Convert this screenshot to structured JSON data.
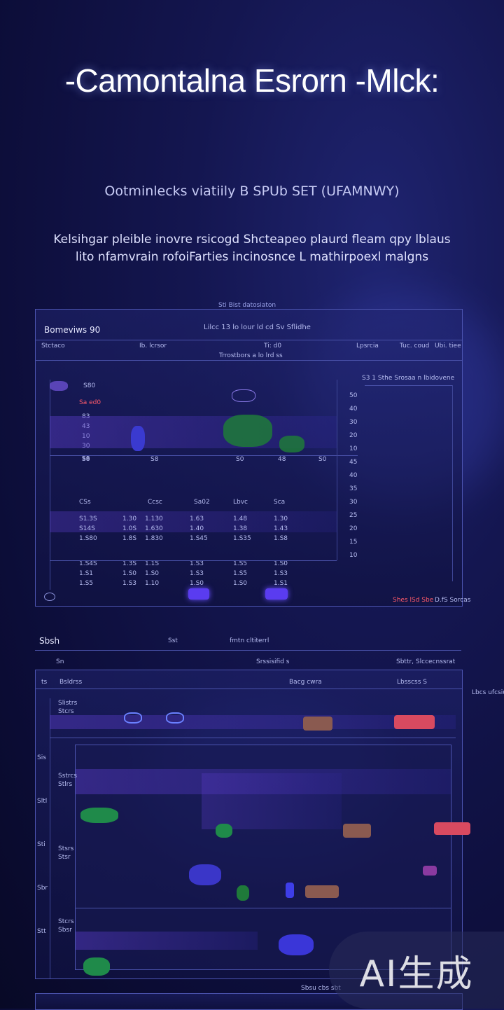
{
  "header": {
    "title": "-Camontalna Esrorn -Mlck:",
    "subtitle": "Ootminlecks viatiily B SPUb SET (UFAMNWY)",
    "description_line1": "Kelsihgar pleible inovre rsicogd Shcteapeo plaurd fleam qpy lblaus",
    "description_line2": "lito nfamvrain rofoiFarties incinosnce L mathirpoexl malgns"
  },
  "dashboard1": {
    "caption": "Sti Bist datosiaton",
    "heading": "Bomeviws 90",
    "center_heading": "Lilcc 13 lo lour ld cd Sv Sflidhe",
    "cols": [
      "Stctaco",
      "Ib. lcrsor",
      "Ti: d0",
      "Lpsrcia",
      "Tuc. coud",
      "Ubi. tiee"
    ],
    "subrow": "Trrostbors a lo lrd ss",
    "right_label": "S3 1 Sthe Srosaa n lbidovene",
    "row_labels": [
      "S80",
      "Sa ed0",
      "83",
      "43",
      "10",
      "30",
      "S6"
    ],
    "top_values": [
      "S8",
      "S8",
      "S0",
      "48",
      "S0"
    ],
    "table_header": [
      "CSs",
      "Ccsc",
      "Sa02",
      "Lbvc",
      "Sca"
    ],
    "table_rows": [
      [
        "S1.3S",
        "1.30",
        "1.130",
        "1.63",
        "1.48",
        "1.30"
      ],
      [
        "S14S",
        "1.0S",
        "1.630",
        "1.40",
        "1.38",
        "1.43"
      ],
      [
        "1.S80",
        "1.8S",
        "1.830",
        "1.S45",
        "1.S35",
        "1.S8"
      ],
      [
        "1.S4S",
        "1.3S",
        "1.1S",
        "1.S3",
        "1.S5",
        "1.S0"
      ],
      [
        "1.S1",
        "1.S0",
        "1.S0",
        "1.S3",
        "1.S5",
        "1.S3"
      ],
      [
        "1.S5",
        "1.S3",
        "1.10",
        "1.S0",
        "1.S0",
        "1.S1"
      ]
    ],
    "side_values": [
      "50",
      "40",
      "30",
      "20",
      "10",
      "45",
      "40",
      "35",
      "30",
      "25",
      "20",
      "15",
      "10"
    ],
    "footer_left": "Shes lSd Sbe",
    "footer_right": "D.fS Sorcas"
  },
  "section2": {
    "label_left": "Sbsh",
    "label_mid": "Sst",
    "label_right": "fmtn cltiterrl",
    "sub_left": "Sn",
    "sub_mid": "Srssisifid s",
    "sub_right": "Sbttr, Slccecnssrat"
  },
  "dashboard2": {
    "cols": [
      "ts",
      "Bsldrss",
      "Bacg cwra",
      "Lbsscss S"
    ],
    "side": [
      "Sis",
      "Sltl",
      "Sti",
      "Sbr",
      "Stt"
    ],
    "rows": [
      {
        "label": "Slistrs",
        "sub": "Stcrs"
      },
      {
        "label": "Sstrcs",
        "sub": "Stlrs"
      },
      {
        "label": "Stsrs",
        "sub": "Stsr"
      },
      {
        "label": "Stcrs",
        "sub": "Sbsr"
      }
    ],
    "right_caption": "Lbcs ufcsiu",
    "bottom_caption": "Sbsu cbs sbt"
  },
  "watermark": "AI生成"
}
